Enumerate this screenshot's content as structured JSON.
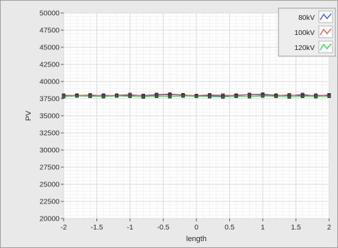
{
  "chart_data": {
    "type": "line",
    "title": "",
    "xlabel": "length",
    "ylabel": "PV",
    "xlim": [
      -2,
      2
    ],
    "ylim": [
      20000,
      50000
    ],
    "x_ticks": [
      -2,
      -1.5,
      -1,
      -0.5,
      0,
      0.5,
      1,
      1.5,
      2
    ],
    "x_tick_labels": [
      "-2",
      "-1.5",
      "-1",
      "-0.5",
      "0",
      "0.5",
      "1",
      "1.5",
      "2"
    ],
    "y_ticks": [
      20000,
      22500,
      25000,
      27500,
      30000,
      32500,
      35000,
      37500,
      40000,
      42500,
      45000,
      47500,
      50000
    ],
    "y_tick_labels": [
      "20000",
      "22500",
      "25000",
      "27500",
      "30000",
      "32500",
      "35000",
      "37500",
      "40000",
      "42500",
      "45000",
      "47500",
      "50000"
    ],
    "grid": true,
    "legend_position": "top-right",
    "x": [
      -2,
      -1.8,
      -1.6,
      -1.4,
      -1.2,
      -1,
      -0.8,
      -0.6,
      -0.4,
      -0.2,
      0,
      0.2,
      0.4,
      0.6,
      0.8,
      1,
      1.2,
      1.4,
      1.6,
      1.8,
      2
    ],
    "series": [
      {
        "name": "80kV",
        "color": "#3b5bd6",
        "values": [
          37900,
          38000,
          37850,
          38000,
          37900,
          38000,
          37950,
          38100,
          38150,
          38050,
          37900,
          37950,
          37850,
          38000,
          38100,
          38150,
          38000,
          37950,
          38100,
          37900,
          38050
        ]
      },
      {
        "name": "100kV",
        "color": "#e05a5a",
        "values": [
          38000,
          37950,
          38050,
          37900,
          38000,
          38100,
          37900,
          38000,
          38050,
          38000,
          37950,
          38050,
          38000,
          37950,
          38050,
          38000,
          37950,
          38050,
          37900,
          38000,
          37950
        ]
      },
      {
        "name": "120kV",
        "color": "#35d84a",
        "values": [
          37800,
          37900,
          37850,
          37800,
          37900,
          37850,
          37750,
          37850,
          37800,
          37900,
          37850,
          37800,
          37750,
          37850,
          37800,
          37900,
          37850,
          37750,
          37850,
          37800,
          37850
        ]
      }
    ]
  }
}
